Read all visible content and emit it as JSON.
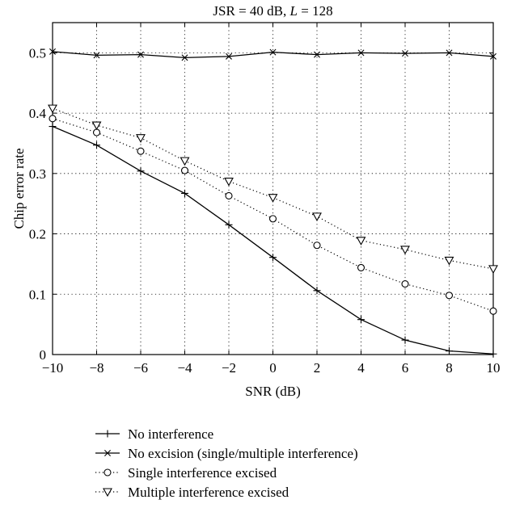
{
  "chart_data": {
    "type": "line",
    "title_parts": [
      "JSR = 40 dB, ",
      "L",
      " = 128"
    ],
    "xlabel": "SNR (dB)",
    "ylabel": "Chip error rate",
    "xlim": [
      -10,
      10
    ],
    "ylim": [
      0,
      0.55
    ],
    "x_ticks": [
      -10,
      -8,
      -6,
      -4,
      -2,
      0,
      2,
      4,
      6,
      8,
      10
    ],
    "x_tick_labels": [
      "−10",
      "−8",
      "−6",
      "−4",
      "−2",
      "0",
      "2",
      "4",
      "6",
      "8",
      "10"
    ],
    "y_ticks": [
      0,
      0.1,
      0.2,
      0.3,
      0.4,
      0.5
    ],
    "y_tick_labels": [
      "0",
      "0.1",
      "0.2",
      "0.3",
      "0.4",
      "0.5"
    ],
    "grid": true,
    "legend_position": "below",
    "x": [
      -10,
      -8,
      -6,
      -4,
      -2,
      0,
      2,
      4,
      6,
      8,
      10
    ],
    "series": [
      {
        "name": "No interference",
        "line": "solid",
        "marker": "plus",
        "values": [
          0.378,
          0.347,
          0.304,
          0.267,
          0.215,
          0.161,
          0.106,
          0.058,
          0.024,
          0.006,
          0.001
        ]
      },
      {
        "name": "No excision (single/multiple interference)",
        "line": "solid",
        "marker": "x",
        "values": [
          0.502,
          0.496,
          0.497,
          0.492,
          0.494,
          0.501,
          0.497,
          0.5,
          0.499,
          0.5,
          0.494
        ]
      },
      {
        "name": "Single interference excised",
        "line": "dotted",
        "marker": "circle",
        "values": [
          0.391,
          0.368,
          0.337,
          0.305,
          0.263,
          0.225,
          0.181,
          0.144,
          0.117,
          0.098,
          0.072
        ]
      },
      {
        "name": "Multiple interference excised",
        "line": "dotted",
        "marker": "triangle-down",
        "values": [
          0.408,
          0.38,
          0.359,
          0.321,
          0.287,
          0.26,
          0.229,
          0.189,
          0.174,
          0.156,
          0.142
        ]
      }
    ]
  }
}
